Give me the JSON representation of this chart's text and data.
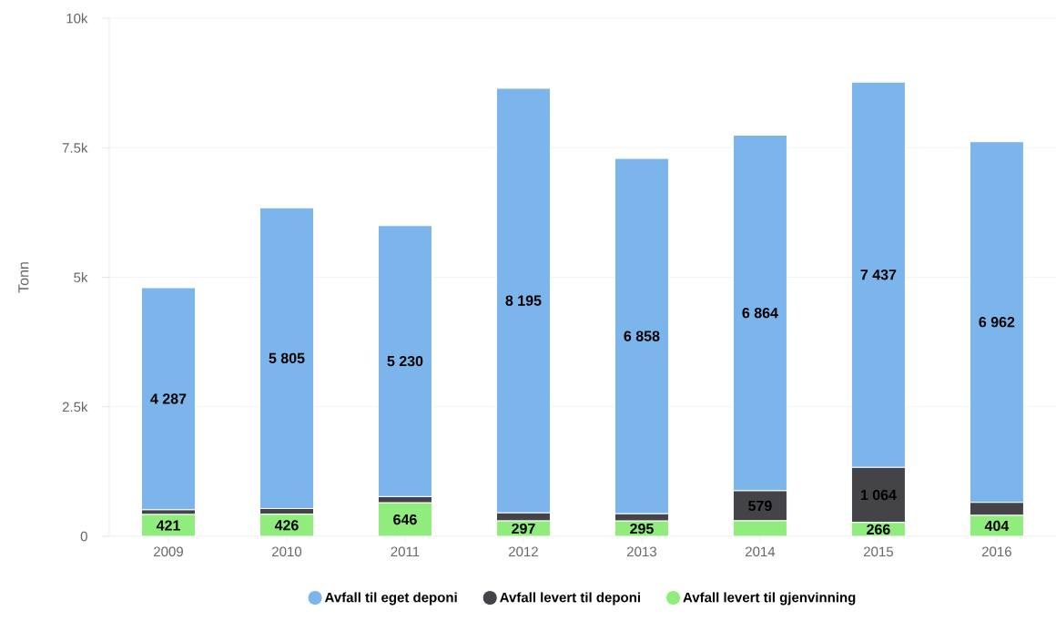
{
  "chart_data": {
    "type": "bar",
    "stacked": true,
    "ylabel": "Tonn",
    "categories": [
      "2009",
      "2010",
      "2011",
      "2012",
      "2013",
      "2014",
      "2015",
      "2016"
    ],
    "series": [
      {
        "name": "Avfall levert til gjenvinning",
        "color": "#90ed7d",
        "values": [
          421,
          426,
          646,
          297,
          295,
          300,
          266,
          404
        ],
        "value_labels": [
          "421",
          "426",
          "646",
          "297",
          "295",
          null,
          "266",
          "404"
        ]
      },
      {
        "name": "Avfall levert til deponi",
        "color": "#434348",
        "values": [
          90,
          110,
          120,
          155,
          140,
          579,
          1064,
          250
        ],
        "value_labels": [
          null,
          null,
          null,
          null,
          null,
          "579",
          "1 064",
          null
        ]
      },
      {
        "name": "Avfall til eget deponi",
        "color": "#7cb5ec",
        "values": [
          4287,
          5805,
          5230,
          8195,
          6858,
          6864,
          7437,
          6962
        ],
        "value_labels": [
          "4 287",
          "5 805",
          "5 230",
          "8 195",
          "6 858",
          "6 864",
          "7 437",
          "6 962"
        ]
      }
    ],
    "ylim": [
      0,
      10000
    ],
    "yticks": [
      {
        "value": 0,
        "label": "0"
      },
      {
        "value": 2500,
        "label": "2.5k"
      },
      {
        "value": 5000,
        "label": "5k"
      },
      {
        "value": 7500,
        "label": "7.5k"
      },
      {
        "value": 10000,
        "label": "10k"
      }
    ],
    "grid": "y",
    "legend": "bottom"
  }
}
